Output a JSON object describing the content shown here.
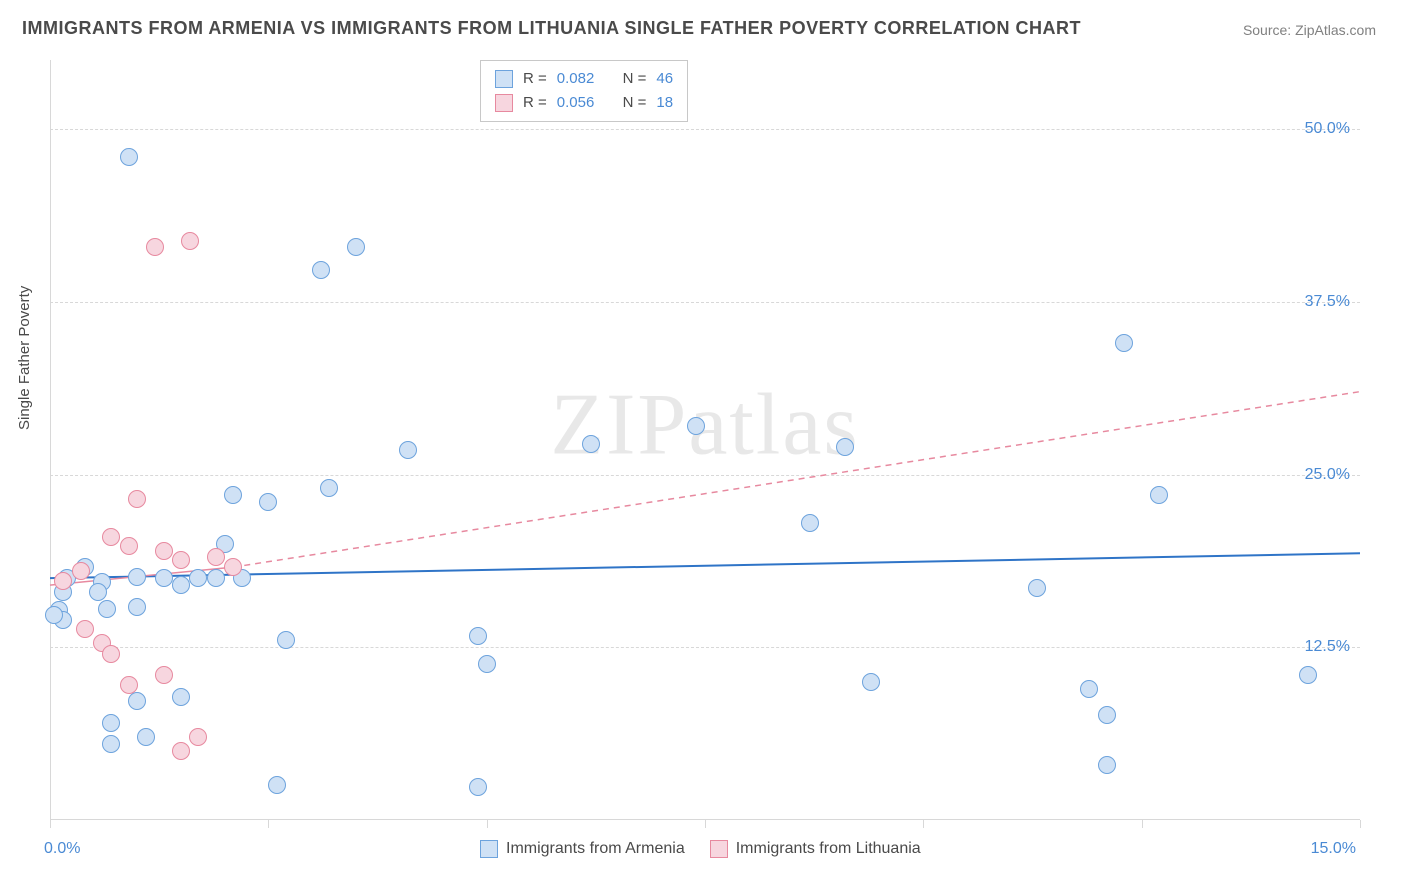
{
  "title": "IMMIGRANTS FROM ARMENIA VS IMMIGRANTS FROM LITHUANIA SINGLE FATHER POVERTY CORRELATION CHART",
  "source": "Source: ZipAtlas.com",
  "watermark": "ZIPatlas",
  "y_axis_label": "Single Father Poverty",
  "chart": {
    "type": "scatter",
    "xlim": [
      0,
      15
    ],
    "ylim": [
      0,
      55
    ],
    "x_tick_labels": {
      "min": "0.0%",
      "max": "15.0%"
    },
    "x_tick_positions": [
      0,
      2.5,
      5.0,
      7.5,
      10.0,
      12.5,
      15.0
    ],
    "y_ticks": [
      {
        "value": 12.5,
        "label": "12.5%"
      },
      {
        "value": 25.0,
        "label": "25.0%"
      },
      {
        "value": 37.5,
        "label": "37.5%"
      },
      {
        "value": 50.0,
        "label": "50.0%"
      }
    ],
    "background_color": "#ffffff",
    "grid_color": "#d8d8d8",
    "point_radius": 9,
    "point_border_width": 1,
    "series": [
      {
        "name": "Immigrants from Armenia",
        "fill_color": "#cfe1f5",
        "border_color": "#6da3dd",
        "r_value": "0.082",
        "n_value": "46",
        "trend": {
          "x1": 0,
          "y1": 17.5,
          "x2": 15,
          "y2": 19.3,
          "color": "#2f74c7",
          "width": 2,
          "dash": "none"
        },
        "points": [
          [
            0.9,
            48.0
          ],
          [
            3.5,
            41.5
          ],
          [
            3.1,
            39.8
          ],
          [
            4.1,
            26.8
          ],
          [
            6.2,
            27.2
          ],
          [
            7.4,
            28.5
          ],
          [
            3.2,
            24.0
          ],
          [
            2.1,
            23.5
          ],
          [
            2.5,
            23.0
          ],
          [
            9.1,
            27.0
          ],
          [
            8.7,
            21.5
          ],
          [
            12.7,
            23.5
          ],
          [
            12.3,
            34.5
          ],
          [
            11.3,
            16.8
          ],
          [
            12.1,
            7.6
          ],
          [
            12.1,
            4.0
          ],
          [
            11.9,
            9.5
          ],
          [
            14.4,
            10.5
          ],
          [
            4.9,
            13.3
          ],
          [
            5.0,
            11.3
          ],
          [
            2.7,
            13.0
          ],
          [
            4.9,
            2.4
          ],
          [
            2.6,
            2.5
          ],
          [
            0.15,
            16.5
          ],
          [
            0.1,
            15.2
          ],
          [
            0.15,
            14.5
          ],
          [
            0.05,
            14.8
          ],
          [
            0.2,
            17.5
          ],
          [
            0.6,
            17.2
          ],
          [
            0.55,
            16.5
          ],
          [
            0.65,
            15.3
          ],
          [
            0.4,
            18.3
          ],
          [
            1.0,
            17.6
          ],
          [
            1.0,
            15.4
          ],
          [
            1.0,
            8.6
          ],
          [
            1.5,
            8.9
          ],
          [
            0.7,
            7.0
          ],
          [
            1.1,
            6.0
          ],
          [
            0.7,
            5.5
          ],
          [
            1.3,
            17.5
          ],
          [
            1.5,
            17.0
          ],
          [
            1.7,
            17.5
          ],
          [
            1.9,
            17.5
          ],
          [
            2.2,
            17.5
          ],
          [
            2.0,
            20.0
          ],
          [
            9.4,
            10.0
          ]
        ]
      },
      {
        "name": "Immigrants from Lithuania",
        "fill_color": "#f7d6df",
        "border_color": "#e7899f",
        "r_value": "0.056",
        "n_value": "18",
        "trend": {
          "x1": 0,
          "y1": 17.0,
          "x2": 2.1,
          "y2": 18.3,
          "x3": 15,
          "y3": 31.0,
          "color": "#e7899f",
          "width": 1.5,
          "dash": "6,5"
        },
        "points": [
          [
            1.2,
            41.5
          ],
          [
            1.6,
            41.9
          ],
          [
            1.0,
            23.2
          ],
          [
            0.7,
            20.5
          ],
          [
            0.9,
            19.8
          ],
          [
            1.3,
            19.5
          ],
          [
            1.5,
            18.8
          ],
          [
            1.9,
            19.0
          ],
          [
            2.1,
            18.3
          ],
          [
            0.35,
            18.0
          ],
          [
            0.15,
            17.3
          ],
          [
            0.4,
            13.8
          ],
          [
            0.6,
            12.8
          ],
          [
            0.7,
            12.0
          ],
          [
            0.9,
            9.8
          ],
          [
            1.3,
            10.5
          ],
          [
            1.7,
            6.0
          ],
          [
            1.5,
            5.0
          ]
        ]
      }
    ]
  },
  "legend_top": {
    "rows": [
      {
        "swatch_fill": "#cfe1f5",
        "swatch_border": "#6da3dd",
        "r": "0.082",
        "n": "46"
      },
      {
        "swatch_fill": "#f7d6df",
        "swatch_border": "#e7899f",
        "r": "0.056",
        "n": "18"
      }
    ],
    "r_label": "R =",
    "n_label": "N ="
  },
  "legend_bottom": [
    {
      "swatch_fill": "#cfe1f5",
      "swatch_border": "#6da3dd",
      "label": "Immigrants from Armenia"
    },
    {
      "swatch_fill": "#f7d6df",
      "swatch_border": "#e7899f",
      "label": "Immigrants from Lithuania"
    }
  ]
}
